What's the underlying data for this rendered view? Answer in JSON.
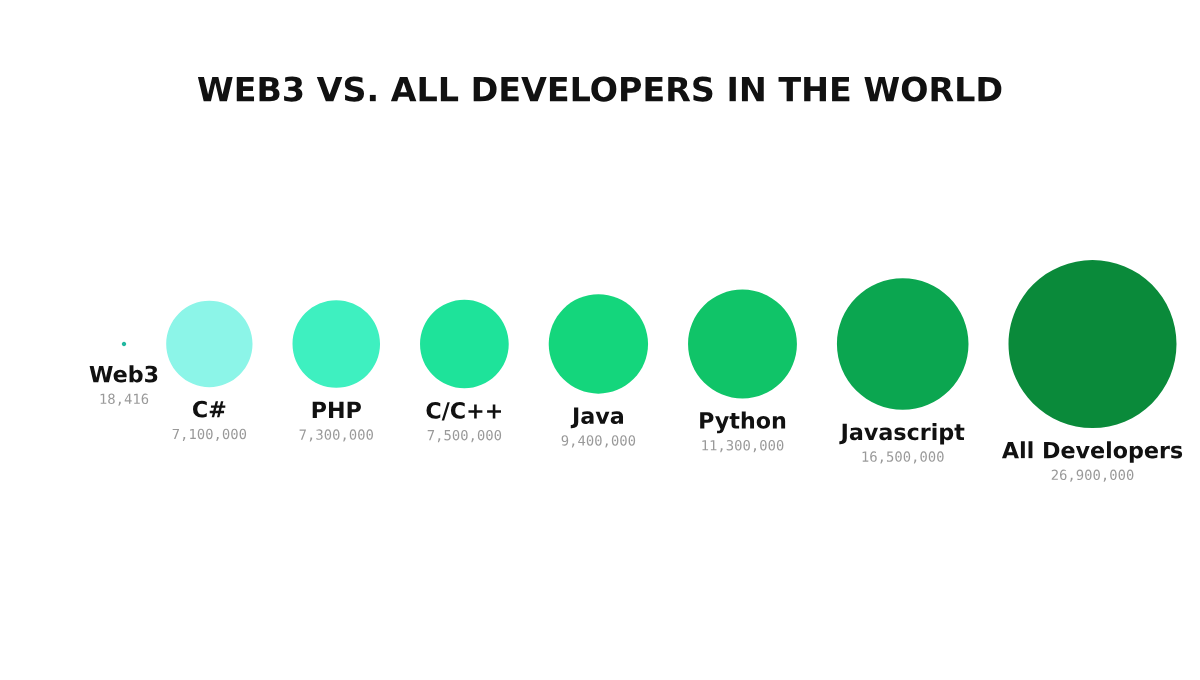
{
  "chart_data": {
    "type": "other",
    "title": "WEB3 VS. ALL DEVELOPERS IN THE WORLD",
    "categories": [
      "Web3",
      "C#",
      "PHP",
      "C/C++",
      "Java",
      "Python",
      "Javascript",
      "All Developers"
    ],
    "values": [
      18416,
      7100000,
      7300000,
      7500000,
      9400000,
      11300000,
      16500000,
      26900000
    ],
    "value_labels": [
      "18,416",
      "7,100,000",
      "7,300,000",
      "7,500,000",
      "9,400,000",
      "11,300,000",
      "16,500,000",
      "26,900,000"
    ],
    "colors": [
      "#22b8a0",
      "#8cf5e8",
      "#3ef0c0",
      "#1ee39a",
      "#14d67c",
      "#10c468",
      "#0ba650",
      "#0a8a3a"
    ]
  }
}
